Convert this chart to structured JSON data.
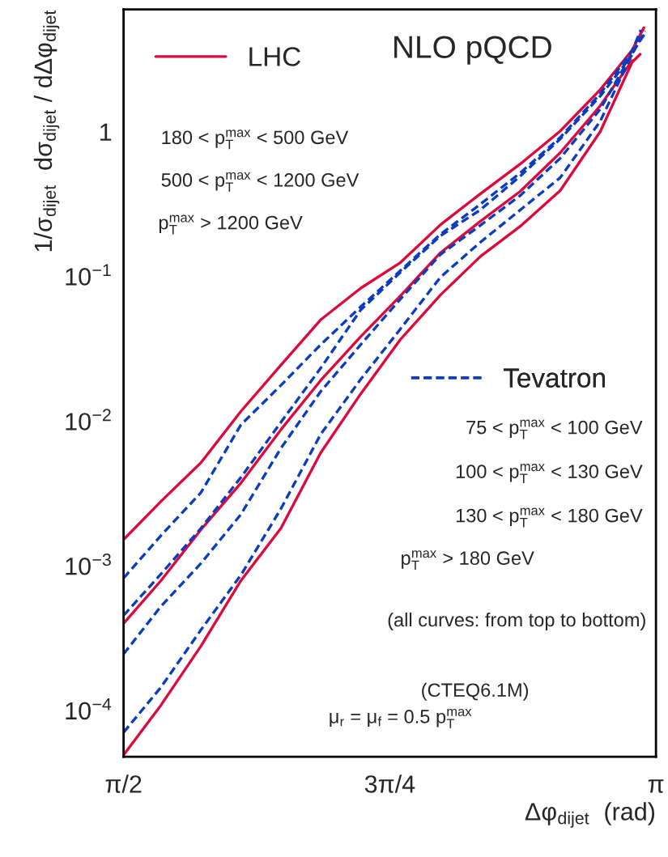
{
  "chart_data": {
    "type": "line",
    "title": "NLO pQCD",
    "xlabel": "Δφ$_{dijet}$  (rad)",
    "ylabel": "1/σ$_{dijet}$  dσ$_{dijet}$ / dΔφ$_{dijet}$",
    "log": "y",
    "grid": false,
    "legend": "top left",
    "xlim": [
      1.5708,
      3.1416
    ],
    "xticks": [
      {
        "value": 1.5708,
        "label": "π/2"
      },
      {
        "value": 2.3562,
        "label": "3π/4"
      },
      {
        "value": 3.1416,
        "label": "π"
      }
    ],
    "ylim": [
      4.8e-05,
      7
    ],
    "yticks": [
      {
        "value": 0.0001,
        "label": "10$^{−4}$"
      },
      {
        "value": 0.001,
        "label": "10$^{−3}$"
      },
      {
        "value": 0.01,
        "label": "10$^{−2}$"
      },
      {
        "value": 0.1,
        "label": "10$^{−1}$"
      },
      1
    ],
    "series": [
      {
        "name": "LHC",
        "color": "#dc0a3c",
        "line_style": "solid",
        "x": [
          1.5708,
          1.681,
          1.799,
          1.917,
          2.035,
          2.152,
          2.27,
          2.388,
          2.506,
          2.623,
          2.741,
          2.859,
          2.977,
          3.071,
          3.106
        ],
        "values": [
          0.00152,
          0.00279,
          0.00516,
          0.0117,
          0.0244,
          0.0501,
          0.0828,
          0.125,
          0.228,
          0.372,
          0.598,
          1.01,
          1.95,
          3.66,
          5.24
        ]
      },
      {
        "color": "#dc0a3c",
        "line_style": "solid",
        "x": [
          1.5708,
          1.681,
          1.799,
          1.917,
          2.035,
          2.152,
          2.27,
          2.388,
          2.506,
          2.623,
          2.741,
          2.859,
          2.977,
          3.071
        ],
        "values": [
          0.0004,
          0.000791,
          0.00178,
          0.00374,
          0.00874,
          0.0191,
          0.0383,
          0.0737,
          0.146,
          0.24,
          0.387,
          0.716,
          1.51,
          3.1
        ]
      },
      {
        "color": "#dc0a3c",
        "line_style": "solid",
        "x": [
          1.5708,
          1.681,
          1.799,
          1.917,
          2.035,
          2.152,
          2.27,
          2.388,
          2.506,
          2.623,
          2.741,
          2.859,
          2.977,
          3.071,
          3.095
        ],
        "values": [
          4.93e-05,
          0.000109,
          0.000279,
          0.000791,
          0.00182,
          0.00603,
          0.0154,
          0.0368,
          0.0746,
          0.137,
          0.222,
          0.392,
          1.0,
          3.02,
          3.43
        ]
      },
      {
        "name": "Tevatron",
        "color": "#0a3cc0",
        "line_style": "dashed",
        "x": [
          1.5708,
          1.681,
          1.799,
          1.917,
          2.035,
          2.152,
          2.27,
          2.388,
          2.506,
          2.623,
          2.741,
          2.859,
          2.977,
          3.071,
          3.097
        ],
        "values": [
          0.000822,
          0.00162,
          0.00321,
          0.00944,
          0.0177,
          0.0337,
          0.0616,
          0.11,
          0.196,
          0.315,
          0.519,
          0.914,
          1.83,
          3.61,
          5.05
        ]
      },
      {
        "color": "#0a3cc0",
        "line_style": "dashed",
        "x": [
          1.5708,
          1.681,
          1.799,
          1.917,
          2.035,
          2.152,
          2.27,
          2.388,
          2.506,
          2.623,
          2.741,
          2.859,
          2.977,
          3.071
        ],
        "values": [
          0.000455,
          0.000877,
          0.00182,
          0.00409,
          0.00982,
          0.0232,
          0.0585,
          0.107,
          0.191,
          0.288,
          0.493,
          0.891,
          1.76,
          3.39
        ]
      },
      {
        "color": "#0a3cc0",
        "line_style": "dashed",
        "x": [
          1.5708,
          1.681,
          1.799,
          1.917,
          2.035,
          2.152,
          2.27,
          2.388,
          2.506,
          2.623,
          2.741,
          2.859,
          2.977,
          3.071,
          3.111
        ],
        "values": [
          0.000246,
          0.000525,
          0.00104,
          0.00227,
          0.0065,
          0.016,
          0.0337,
          0.07,
          0.142,
          0.225,
          0.362,
          0.655,
          1.43,
          3.48,
          4.86
        ]
      },
      {
        "color": "#0a3cc0",
        "line_style": "dashed",
        "x": [
          1.5708,
          1.681,
          1.799,
          1.917,
          2.035,
          2.152,
          2.27,
          2.388,
          2.506,
          2.623,
          2.741,
          2.859,
          2.977,
          3.071,
          3.109
        ],
        "values": [
          7.06e-05,
          0.000145,
          0.000361,
          0.000865,
          0.00248,
          0.00809,
          0.0194,
          0.0435,
          0.099,
          0.172,
          0.288,
          0.481,
          1.18,
          3.43,
          4.98
        ]
      }
    ],
    "annotations": [
      "180 < p$^{max}$$_{T}$ < 500 GeV",
      "500 < p$^{max}$$_{T}$ < 1200 GeV",
      "p$^{max}$$_{T}$ > 1200 GeV",
      "75 < p$^{max}$$_{T}$ < 100 GeV",
      "100 < p$^{max}$$_{T}$ < 130 GeV",
      "130 < p$^{max}$$_{T}$ < 180 GeV",
      "p$^{max}$$_{T}$ > 180 GeV",
      "(all curves: from top to bottom)",
      "(CTEQ6.1M)",
      "μ$_{r}$ = μ$_{f}$ = 0.5 p$^{max}$$_{T}$"
    ]
  }
}
